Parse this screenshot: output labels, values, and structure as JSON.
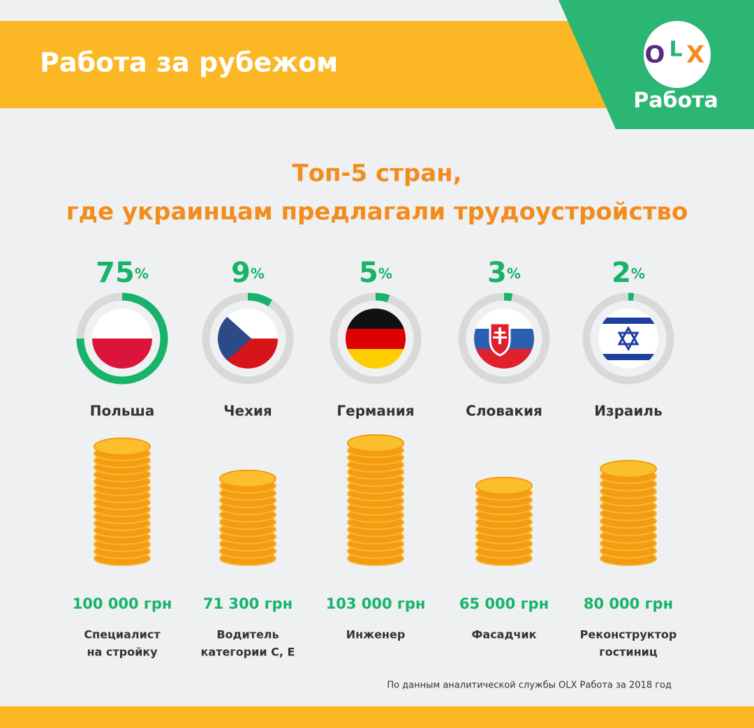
{
  "header": {
    "title": "Работа за рубежом",
    "logo_letters": [
      "O",
      "L",
      "X"
    ],
    "logo_caption": "Работа"
  },
  "subtitle": [
    "Топ-5 стран,",
    "где украинцам предлагали трудоустройство"
  ],
  "percent_sign": "%",
  "countries": [
    {
      "name": "Польша",
      "share": 75,
      "salary": 100000,
      "salary_label": "100 000 грн",
      "job": [
        "Специалист",
        "на стройку"
      ]
    },
    {
      "name": "Чехия",
      "share": 9,
      "salary": 71300,
      "salary_label": "71 300 грн",
      "job": [
        "Водитель",
        "категории С, Е"
      ]
    },
    {
      "name": "Германия",
      "share": 5,
      "salary": 103000,
      "salary_label": "103 000 грн",
      "job": [
        "Инженер"
      ]
    },
    {
      "name": "Словакия",
      "share": 3,
      "salary": 65000,
      "salary_label": "65 000 грн",
      "job": [
        "Фасадчик"
      ]
    },
    {
      "name": "Израиль",
      "share": 2,
      "salary": 80000,
      "salary_label": "80 000 грн",
      "job": [
        "Реконструктор",
        "гостиниц"
      ]
    }
  ],
  "footnote": "По данным аналитической службы OLX Работа за 2018 год"
}
